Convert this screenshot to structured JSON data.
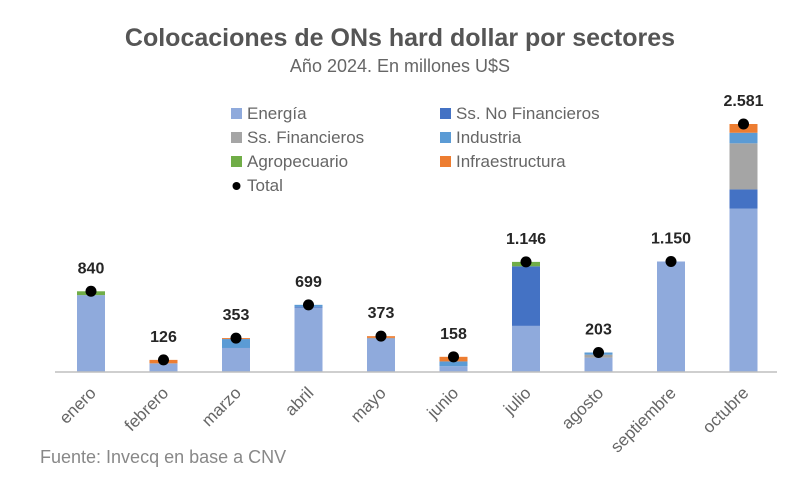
{
  "chart_data": {
    "type": "bar",
    "stacked": true,
    "title": "Colocaciones de ONs hard dollar por sectores",
    "subtitle": "Año 2024. En millones U$S",
    "source": "Fuente: Invecq en base a CNV",
    "categories": [
      "enero",
      "febrero",
      "marzo",
      "abril",
      "mayo",
      "junio",
      "julio",
      "agosto",
      "septiembre",
      "octubre"
    ],
    "series": [
      {
        "name": "Energía",
        "color": "#8FAADC",
        "values": [
          800,
          90,
          250,
          670,
          350,
          60,
          480,
          150,
          1150,
          1700
        ]
      },
      {
        "name": "Ss. No Financieros",
        "color": "#4472C4",
        "values": [
          0,
          0,
          0,
          10,
          0,
          0,
          620,
          0,
          0,
          200
        ]
      },
      {
        "name": "Ss. Financieros",
        "color": "#A5A5A5",
        "values": [
          0,
          0,
          0,
          0,
          5,
          0,
          0,
          30,
          0,
          480
        ]
      },
      {
        "name": "Industria",
        "color": "#5B9BD5",
        "values": [
          0,
          0,
          93,
          19,
          0,
          50,
          0,
          23,
          0,
          110
        ]
      },
      {
        "name": "Agropecuario",
        "color": "#70AD47",
        "values": [
          40,
          0,
          0,
          0,
          0,
          0,
          46,
          0,
          0,
          0
        ]
      },
      {
        "name": "Infraestructura",
        "color": "#ED7D31",
        "values": [
          0,
          36,
          10,
          0,
          18,
          48,
          0,
          0,
          0,
          91
        ]
      }
    ],
    "total": {
      "name": "Total",
      "values": [
        840,
        126,
        353,
        699,
        373,
        158,
        1146,
        203,
        1150,
        2581
      ],
      "labels": [
        "840",
        "126",
        "353",
        "699",
        "373",
        "158",
        "1.146",
        "203",
        "1.150",
        "2.581"
      ]
    },
    "ylim": [
      0,
      2700
    ],
    "grid": false,
    "legend_position": "top-center"
  }
}
